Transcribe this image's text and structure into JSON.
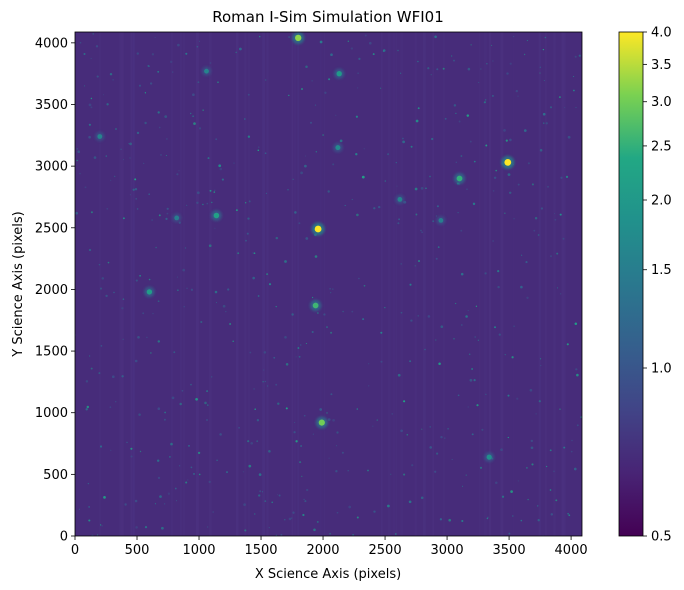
{
  "chart_data": {
    "type": "heatmap",
    "title": "Roman I-Sim Simulation WFI01",
    "xlabel": "X Science Axis (pixels)",
    "ylabel": "Y Science Axis (pixels)",
    "xlim": [
      0,
      4088
    ],
    "ylim": [
      0,
      4088
    ],
    "xticks": [
      0,
      500,
      1000,
      1500,
      2000,
      2500,
      3000,
      3500,
      4000
    ],
    "yticks": [
      0,
      500,
      1000,
      1500,
      2000,
      2500,
      3000,
      3500,
      4000
    ],
    "colormap": "viridis",
    "background_color": "#472c7a",
    "colorbar": {
      "range": [
        0.5,
        4.0
      ],
      "scale": "log",
      "ticks": [
        "0.5",
        "1.0",
        "1.5",
        "2.0",
        "2.5",
        "3.0",
        "3.5",
        "4.0"
      ]
    },
    "bright_sources": [
      {
        "x": 1800,
        "y": 4040,
        "level": 3.2
      },
      {
        "x": 2130,
        "y": 3750,
        "level": 2.0
      },
      {
        "x": 2120,
        "y": 3150,
        "level": 1.7
      },
      {
        "x": 3490,
        "y": 3030,
        "level": 4.0
      },
      {
        "x": 3100,
        "y": 2900,
        "level": 2.5
      },
      {
        "x": 2620,
        "y": 2730,
        "level": 1.6
      },
      {
        "x": 1140,
        "y": 2600,
        "level": 2.2
      },
      {
        "x": 1960,
        "y": 2490,
        "level": 4.0
      },
      {
        "x": 600,
        "y": 1980,
        "level": 2.1
      },
      {
        "x": 1940,
        "y": 1870,
        "level": 2.6
      },
      {
        "x": 1990,
        "y": 920,
        "level": 3.0
      },
      {
        "x": 3340,
        "y": 640,
        "level": 1.8
      },
      {
        "x": 200,
        "y": 3240,
        "level": 1.6
      },
      {
        "x": 1060,
        "y": 3770,
        "level": 1.6
      },
      {
        "x": 820,
        "y": 2580,
        "level": 1.5
      },
      {
        "x": 2950,
        "y": 2560,
        "level": 1.5
      }
    ]
  }
}
